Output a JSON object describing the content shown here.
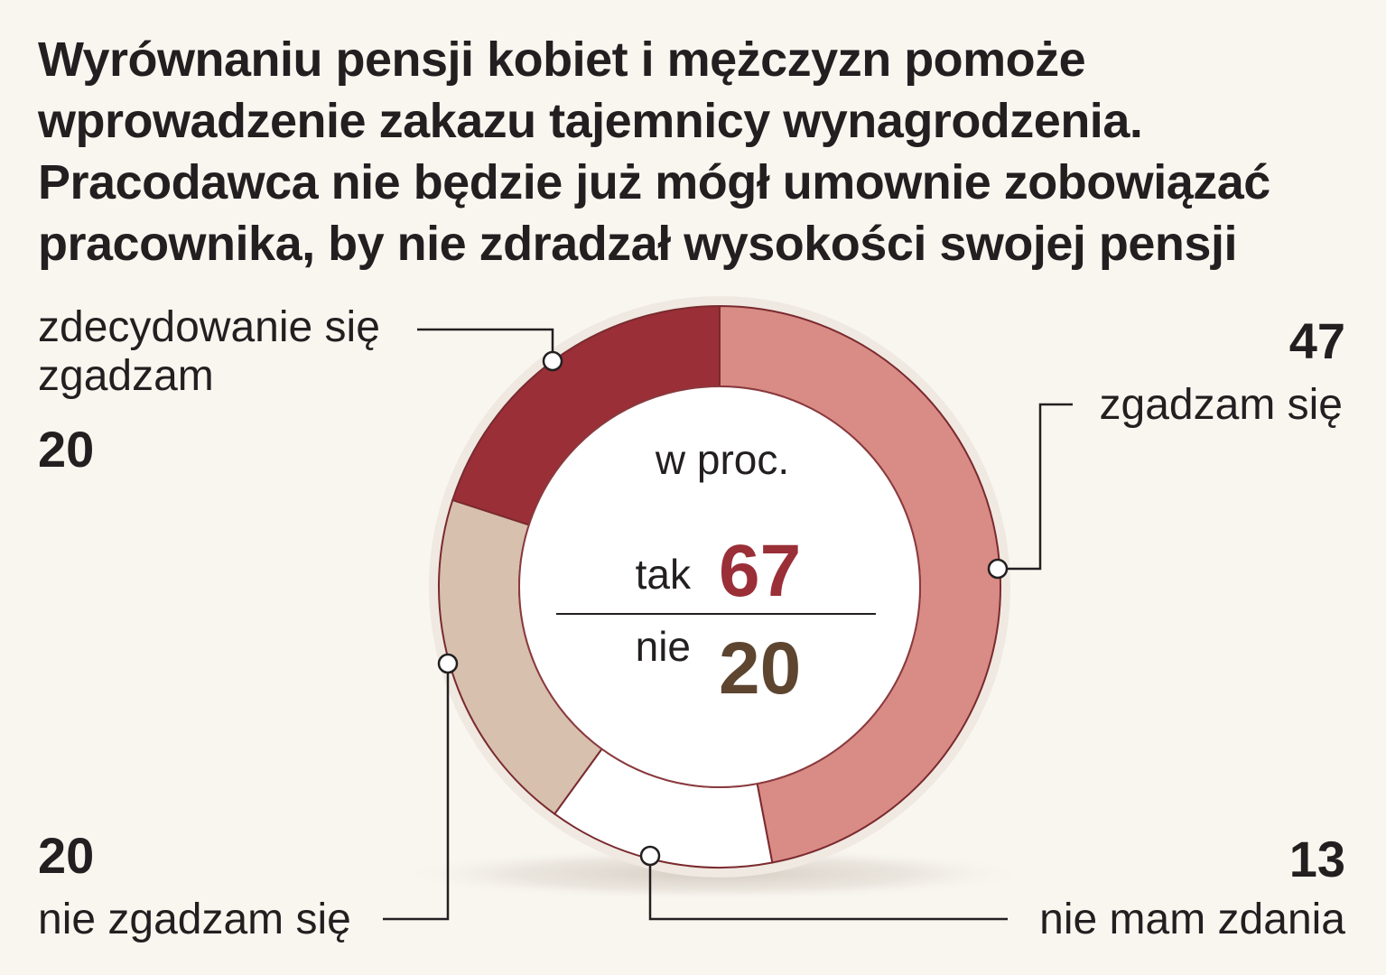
{
  "title_lines": [
    "Wyrównaniu pensji kobiet i mężczyzn pomoże",
    "wprowadzenie zakazu tajemnicy wynagrodzenia.",
    "Pracodawca nie będzie już mógł umownie zobowiązać",
    "pracownika, by nie zdradzał wysokości swojej pensji"
  ],
  "chart_data": {
    "type": "pie",
    "unit_label": "w proc.",
    "slices": [
      {
        "label": "zgadzam się",
        "value": 47,
        "value_text": "47",
        "color": "#d98b85"
      },
      {
        "label": "nie mam zdania",
        "value": 13,
        "value_text": "13",
        "color": "#ffffff"
      },
      {
        "label_lines": [
          "nie zgadzam się"
        ],
        "label": "nie zgadzam się",
        "value": 20,
        "value_text": "20",
        "color": "#d7c0ad"
      },
      {
        "label_lines": [
          "zdecydowanie się",
          "zgadzam"
        ],
        "label": "zdecydowanie się zgadzam",
        "value": 20,
        "value_text": "20",
        "color": "#9a2f37"
      }
    ],
    "summary": {
      "yes_label": "tak",
      "yes_value": "67",
      "yes_color": "#9a2f37",
      "no_label": "nie",
      "no_value": "20",
      "no_color": "#5e4530"
    }
  },
  "colors": {
    "background": "#f9f6f0",
    "text": "#231f20",
    "leader_line": "#231f20",
    "slice_stroke": "#7a2a2f"
  }
}
